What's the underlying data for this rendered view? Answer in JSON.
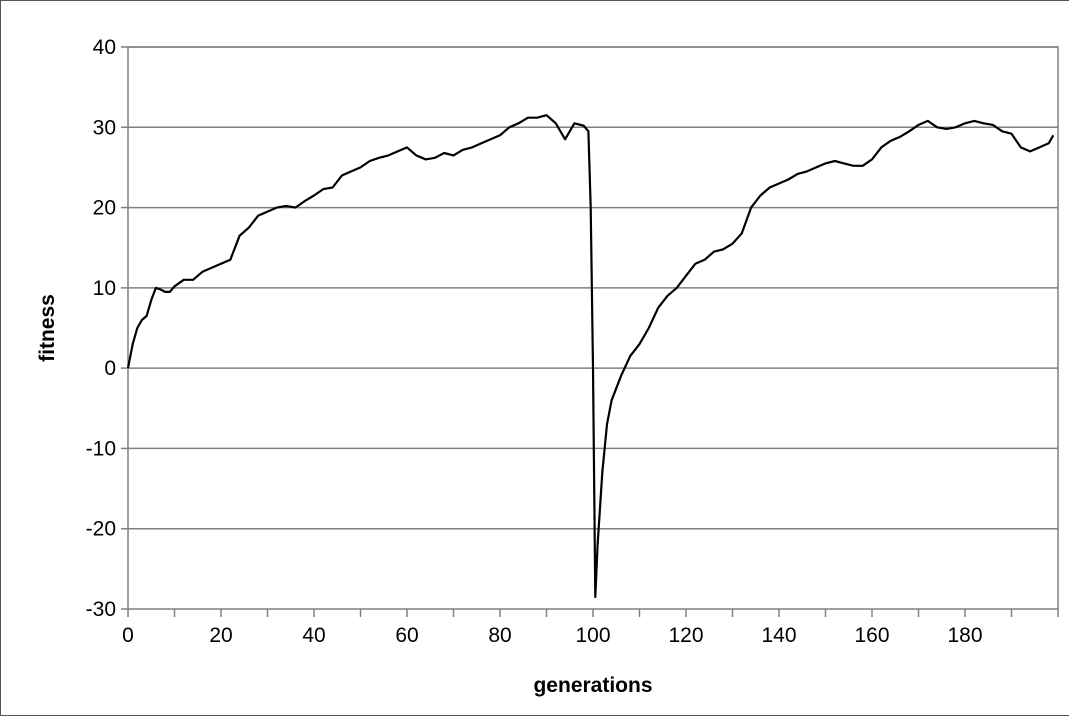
{
  "chart_data": {
    "type": "line",
    "title": "",
    "xlabel": "generations",
    "ylabel": "fitness",
    "xlim": [
      0,
      200
    ],
    "ylim": [
      -30,
      40
    ],
    "x_ticks": [
      "0",
      "20",
      "40",
      "60",
      "80",
      "100",
      "120",
      "140",
      "160",
      "180"
    ],
    "y_ticks": [
      "40",
      "30",
      "20",
      "10",
      "0",
      "-10",
      "-20",
      "-30"
    ],
    "grid": "horizontal",
    "legend": "none",
    "line_color": "#000000",
    "series": [
      {
        "x": [
          0,
          1,
          2,
          3,
          4,
          5,
          6,
          7,
          8,
          9,
          10,
          12,
          14,
          16,
          18,
          20,
          22,
          24,
          26,
          28,
          30,
          32,
          34,
          36,
          38,
          40,
          42,
          44,
          46,
          48,
          50,
          52,
          54,
          56,
          58,
          60,
          62,
          64,
          66,
          68,
          70,
          72,
          74,
          76,
          78,
          80,
          82,
          84,
          86,
          88,
          90,
          92,
          94,
          96,
          98,
          99,
          99.5,
          100,
          100.5,
          101,
          102,
          103,
          104,
          105,
          106,
          108,
          110,
          112,
          114,
          116,
          118,
          120,
          122,
          124,
          126,
          128,
          130,
          132,
          134,
          136,
          138,
          140,
          142,
          144,
          146,
          148,
          150,
          152,
          154,
          156,
          158,
          160,
          162,
          164,
          166,
          168,
          170,
          172,
          174,
          176,
          178,
          180,
          182,
          184,
          186,
          188,
          190,
          192,
          194,
          196,
          198,
          199
        ],
        "y": [
          0,
          3,
          5,
          6,
          6.5,
          8.5,
          10,
          9.8,
          9.5,
          9.5,
          10.2,
          11,
          11,
          12,
          12.5,
          13,
          13.5,
          16.5,
          17.5,
          19,
          19.5,
          20,
          20.2,
          20,
          20.8,
          21.5,
          22.3,
          22.5,
          24,
          24.5,
          25,
          25.8,
          26.2,
          26.5,
          27,
          27.5,
          26.5,
          26,
          26.2,
          26.8,
          26.5,
          27.2,
          27.5,
          28,
          28.5,
          29,
          30,
          30.5,
          31.2,
          31.2,
          31.5,
          30.5,
          28.5,
          30.5,
          30.2,
          29.5,
          20,
          0,
          -28.5,
          -22,
          -13,
          -7,
          -4,
          -2.5,
          -1,
          1.5,
          3,
          5,
          7.5,
          9,
          10,
          11.5,
          13,
          13.5,
          14.5,
          14.8,
          15.5,
          16.8,
          20,
          21.5,
          22.5,
          23,
          23.5,
          24.2,
          24.5,
          25,
          25.5,
          25.8,
          25.5,
          25.2,
          25.2,
          26,
          27.5,
          28.3,
          28.8,
          29.5,
          30.3,
          30.8,
          30,
          29.8,
          30,
          30.5,
          30.8,
          30.5,
          30.3,
          29.5,
          29.2,
          27.5,
          27,
          27.5,
          28,
          29
        ]
      }
    ]
  }
}
